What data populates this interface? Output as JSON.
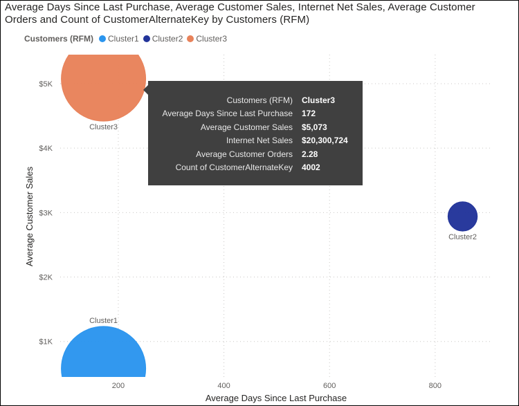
{
  "title": "Average Days Since Last Purchase, Average Customer Sales, Internet Net Sales, Average Customer Orders and Count of CustomerAlternateKey by Customers (RFM)",
  "legend": {
    "title": "Customers (RFM)",
    "items": [
      {
        "label": "Cluster1",
        "color": "#2b95ee"
      },
      {
        "label": "Cluster2",
        "color": "#22349a"
      },
      {
        "label": "Cluster3",
        "color": "#e8825a"
      }
    ]
  },
  "chart_data": {
    "type": "scatter",
    "title": "Average Days Since Last Purchase, Average Customer Sales, Internet Net Sales, Average Customer Orders and Count of CustomerAlternateKey by Customers (RFM)",
    "xlabel": "Average Days Since Last Purchase",
    "ylabel": "Average Customer Sales",
    "xlim": [
      90,
      905
    ],
    "ylim": [
      450,
      5450
    ],
    "x_ticks": [
      200,
      400,
      600,
      800
    ],
    "x_tick_labels": [
      "200",
      "400",
      "600",
      "800"
    ],
    "y_ticks": [
      1000,
      2000,
      3000,
      4000,
      5000
    ],
    "y_tick_labels": [
      "$1K",
      "$2K",
      "$3K",
      "$4K",
      "$5K"
    ],
    "grid": true,
    "legend_position": "top-left",
    "size_field": "Internet Net Sales",
    "points": [
      {
        "series": "Cluster1",
        "label": "Cluster1",
        "x": 172,
        "y": 580,
        "size": 20300000,
        "color": "#2b95ee",
        "label_position": "above"
      },
      {
        "series": "Cluster2",
        "label": "Cluster2",
        "x": 852,
        "y": 2940,
        "size": 2450000,
        "color": "#22349a",
        "label_position": "below"
      },
      {
        "series": "Cluster3",
        "label": "Cluster3",
        "x": 172,
        "y": 5073,
        "size": 20300724,
        "color": "#e8825a",
        "label_position": "below"
      }
    ]
  },
  "tooltip": {
    "rows": [
      {
        "label": "Customers (RFM)",
        "value": "Cluster3"
      },
      {
        "label": "Average Days Since Last Purchase",
        "value": "172"
      },
      {
        "label": "Average Customer Sales",
        "value": "$5,073"
      },
      {
        "label": "Internet Net Sales",
        "value": "$20,300,724"
      },
      {
        "label": "Average Customer Orders",
        "value": "2.28"
      },
      {
        "label": "Count of CustomerAlternateKey",
        "value": "4002"
      }
    ]
  }
}
